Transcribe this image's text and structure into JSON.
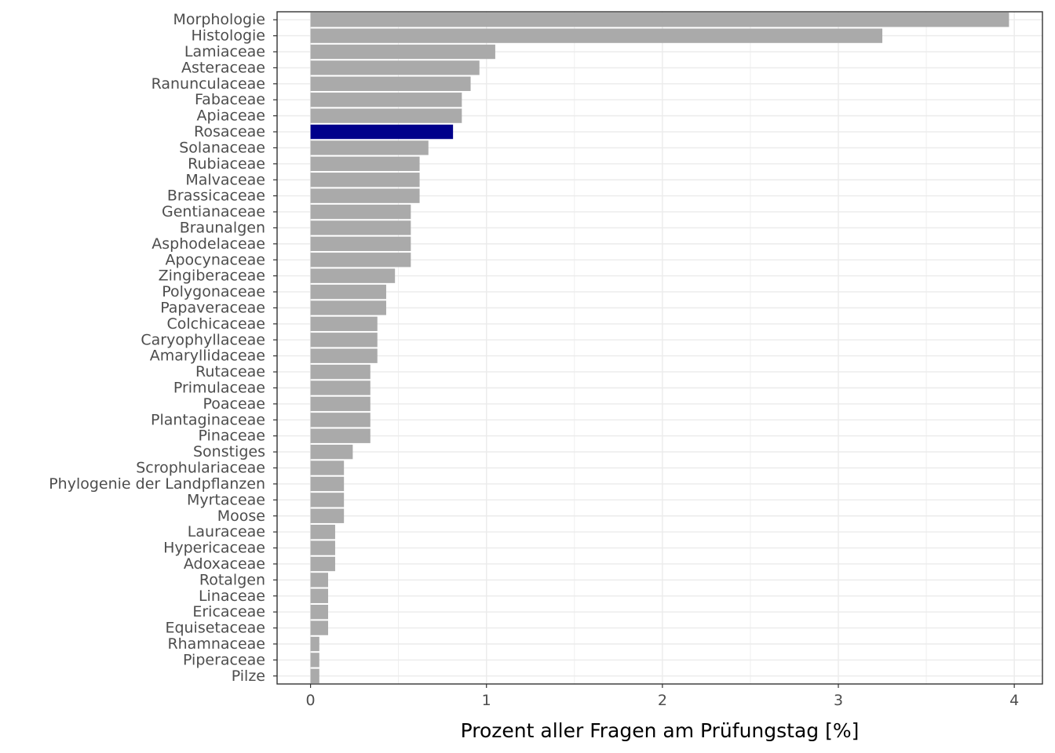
{
  "chart_data": {
    "type": "bar",
    "orientation": "horizontal",
    "xlabel": "Prozent aller Fragen am Prüfungstag [%]",
    "ylabel": "",
    "xlim": [
      -0.19,
      4.16
    ],
    "xticks": [
      0,
      1,
      2,
      3,
      4
    ],
    "grid": true,
    "colors": {
      "default": "#aaaaaa",
      "highlight": "#00008b",
      "grid": "#ebebeb",
      "panel_border": "#333333"
    },
    "highlight_category": "Rosaceae",
    "categories": [
      "Morphologie",
      "Histologie",
      "Lamiaceae",
      "Asteraceae",
      "Ranunculaceae",
      "Fabaceae",
      "Apiaceae",
      "Rosaceae",
      "Solanaceae",
      "Rubiaceae",
      "Malvaceae",
      "Brassicaceae",
      "Gentianaceae",
      "Braunalgen",
      "Asphodelaceae",
      "Apocynaceae",
      "Zingiberaceae",
      "Polygonaceae",
      "Papaveraceae",
      "Colchicaceae",
      "Caryophyllaceae",
      "Amaryllidaceae",
      "Rutaceae",
      "Primulaceae",
      "Poaceae",
      "Plantaginaceae",
      "Pinaceae",
      "Sonstiges",
      "Scrophulariaceae",
      "Phylogenie der Landpflanzen",
      "Myrtaceae",
      "Moose",
      "Lauraceae",
      "Hypericaceae",
      "Adoxaceae",
      "Rotalgen",
      "Linaceae",
      "Ericaceae",
      "Equisetaceae",
      "Rhamnaceae",
      "Piperaceae",
      "Pilze"
    ],
    "values": [
      3.97,
      3.25,
      1.05,
      0.96,
      0.91,
      0.86,
      0.86,
      0.81,
      0.67,
      0.62,
      0.62,
      0.62,
      0.57,
      0.57,
      0.57,
      0.57,
      0.48,
      0.43,
      0.43,
      0.38,
      0.38,
      0.38,
      0.34,
      0.34,
      0.34,
      0.34,
      0.34,
      0.24,
      0.19,
      0.19,
      0.19,
      0.19,
      0.14,
      0.14,
      0.14,
      0.1,
      0.1,
      0.1,
      0.1,
      0.05,
      0.05,
      0.05
    ]
  }
}
